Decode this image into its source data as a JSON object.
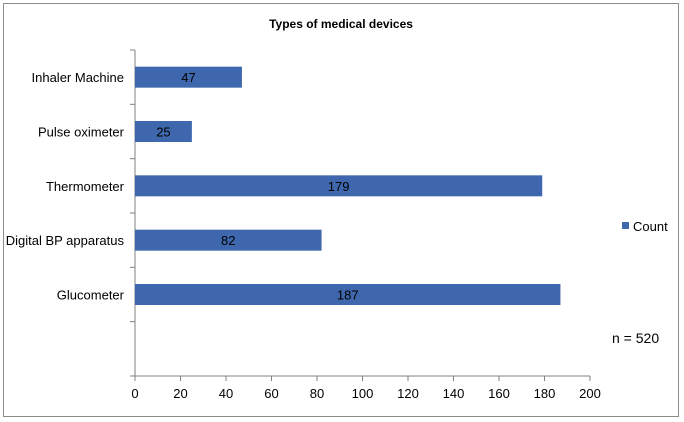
{
  "chart_data": {
    "type": "bar",
    "orientation": "horizontal",
    "title": "Types of medical  devices",
    "categories": [
      "Inhaler Machine",
      "Pulse oximeter",
      "Thermometer",
      "Digital BP apparatus",
      "Glucometer"
    ],
    "series": [
      {
        "name": "Count",
        "values": [
          47,
          25,
          179,
          82,
          187
        ],
        "color": "#3e67ad"
      }
    ],
    "xlim": [
      0,
      200
    ],
    "xticks": [
      0,
      20,
      40,
      60,
      80,
      100,
      120,
      140,
      160,
      180,
      200
    ],
    "grid": false,
    "legend": "right",
    "annotation": "n = 520"
  }
}
